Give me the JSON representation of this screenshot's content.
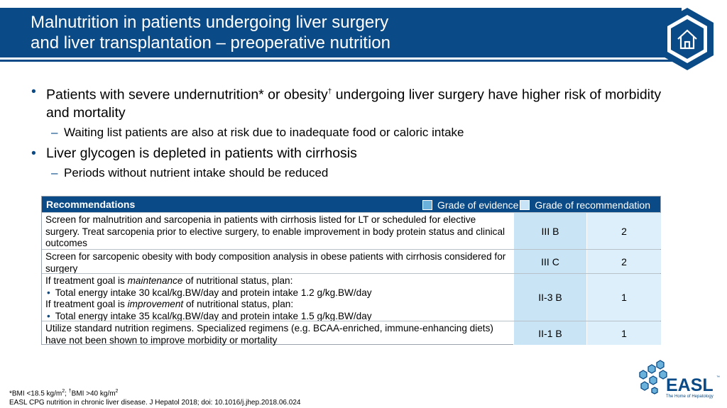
{
  "slide": {
    "title_line1": "Malnutrition in patients undergoing liver surgery",
    "title_line2": "and liver transplantation – preoperative nutrition"
  },
  "bullets": [
    {
      "text_a": "Patients with severe undernutrition* or obesity",
      "sup": "†",
      "text_b": " undergoing liver surgery have higher risk of morbidity and mortality",
      "sub": "Waiting list patients are also at risk due to inadequate food or caloric intake"
    },
    {
      "text_a": "Liver glycogen is depleted in patients with cirrhosis",
      "sup": "",
      "text_b": "",
      "sub": "Periods without nutrient intake should be reduced"
    }
  ],
  "recommendations": {
    "header": "Recommendations",
    "legend_evidence": "Grade of evidence",
    "legend_recommendation": "Grade of recommendation",
    "legend_colors": {
      "evidence": "#6ab1dc",
      "recommendation": "#c7e3f5"
    },
    "rows": [
      {
        "text": "Screen for malnutrition and sarcopenia in patients with cirrhosis listed for LT or scheduled for elective surgery. Treat sarcopenia prior to elective surgery, to enable improvement in body protein status and clinical outcomes",
        "evidence": "III B",
        "grade": "2"
      },
      {
        "text": "Screen for sarcopenic obesity with body composition analysis in obese patients with cirrhosis considered for surgery",
        "evidence": "III C",
        "grade": "2"
      },
      {
        "line1_a": "If treatment goal is ",
        "line1_em": "maintenance",
        "line1_b": " of nutritional status, plan:",
        "bullet1": "Total energy intake 30 kcal/kg.BW/day and protein intake 1.2 g/kg.BW/day",
        "line2_a": "If treatment goal is ",
        "line2_em": "improvement",
        "line2_b": " of nutritional status, plan:",
        "bullet2": "Total energy intake 35 kcal/kg.BW/day and protein intake 1.5 g/kg.BW/day",
        "evidence": "II-3 B",
        "grade": "1"
      },
      {
        "text": "Utilize standard nutrition regimens. Specialized regimens (e.g. BCAA-enriched, immune-enhancing diets) have not been shown to improve morbidity or mortality",
        "evidence": "II-1 B",
        "grade": "1"
      }
    ]
  },
  "footnote": {
    "bmi_a": "*BMI <18.5 kg/m",
    "bmi_sup1": "2",
    "bmi_b": "; ",
    "bmi_dag": "†",
    "bmi_c": "BMI >40 kg/m",
    "bmi_sup2": "2",
    "reference": "EASL CPG nutrition in chronic liver disease. J Hepatol 2018; doi: 10.1016/j.jhep.2018.06.024"
  },
  "logo": {
    "name": "EASL",
    "tm": "™",
    "tagline": "The Home of Hepatology"
  },
  "icons": {
    "home": "home-icon"
  },
  "colors": {
    "brand": "#0a4a86",
    "evidence_cell": "#c9e4f5",
    "grade_cell": "#ddeffa"
  }
}
